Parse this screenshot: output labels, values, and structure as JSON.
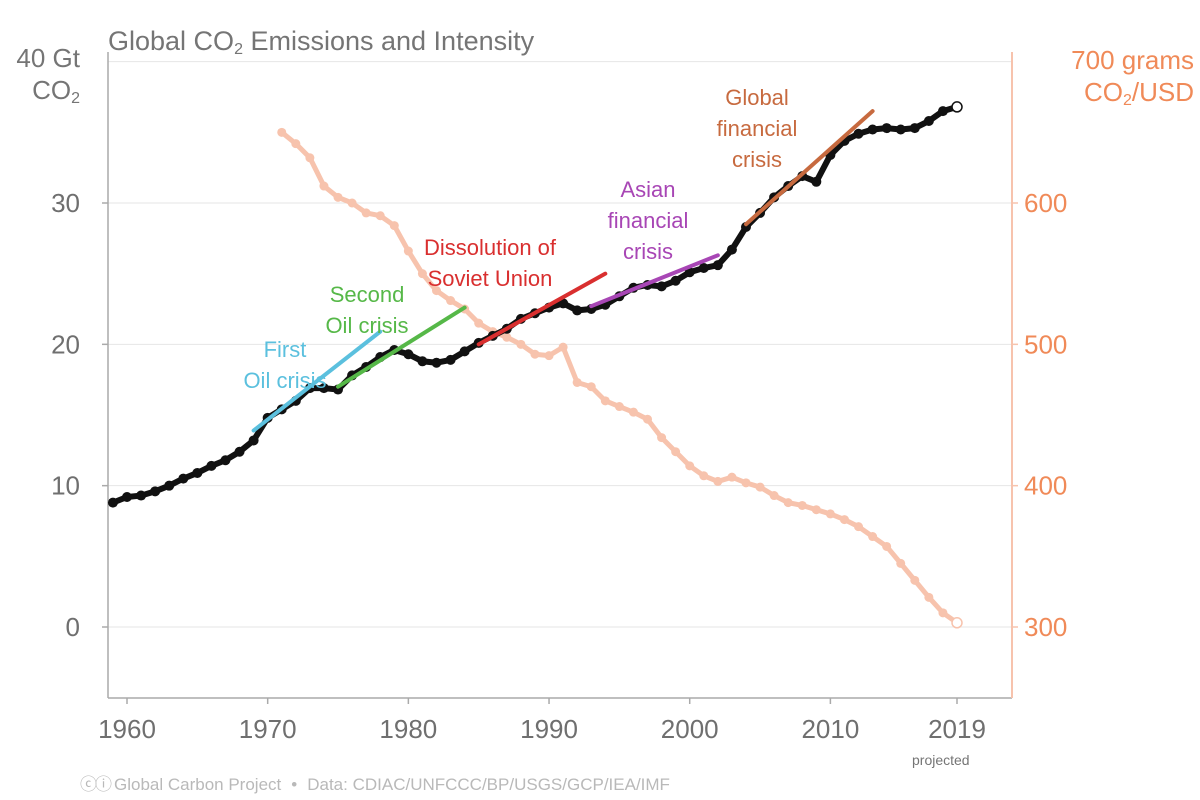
{
  "chart_data": {
    "type": "line",
    "title_prefix": "Global CO",
    "title_sub": "2",
    "title_suffix": " Emissions and Intensity",
    "y_left_label_line1": "40 Gt",
    "y_left_label_line2_prefix": "CO",
    "y_left_label_line2_sub": "2",
    "y_right_label_line1": "700 grams",
    "y_right_label_line2_prefix": "CO",
    "y_right_label_line2_sub": "2",
    "y_right_label_line2_suffix": "/USD",
    "xlim": [
      1959,
      2019
    ],
    "ylim_left": [
      -5,
      40
    ],
    "ylim_right": [
      250,
      700
    ],
    "x_ticks": [
      "1960",
      "1970",
      "1980",
      "1990",
      "2000",
      "2010",
      "2019"
    ],
    "x_tick_values": [
      1960,
      1970,
      1980,
      1990,
      2000,
      2010,
      2019
    ],
    "y_left_ticks": [
      "0",
      "10",
      "20",
      "30"
    ],
    "y_left_tick_values": [
      0,
      10,
      20,
      30
    ],
    "y_right_ticks": [
      "300",
      "400",
      "500",
      "600"
    ],
    "y_right_tick_values": [
      300,
      400,
      500,
      600
    ],
    "projected_note": "projected",
    "grid": true,
    "series": [
      {
        "axis": "left",
        "color": "#111111",
        "x": [
          1959,
          1960,
          1961,
          1962,
          1963,
          1964,
          1965,
          1966,
          1967,
          1968,
          1969,
          1970,
          1971,
          1972,
          1973,
          1974,
          1975,
          1976,
          1977,
          1978,
          1979,
          1980,
          1981,
          1982,
          1983,
          1984,
          1985,
          1986,
          1987,
          1988,
          1989,
          1990,
          1991,
          1992,
          1993,
          1994,
          1995,
          1996,
          1997,
          1998,
          1999,
          2000,
          2001,
          2002,
          2003,
          2004,
          2005,
          2006,
          2007,
          2008,
          2009,
          2010,
          2011,
          2012,
          2013,
          2014,
          2015,
          2016,
          2017,
          2018,
          2019
        ],
        "values": [
          8.8,
          9.2,
          9.3,
          9.6,
          10.0,
          10.5,
          10.9,
          11.4,
          11.8,
          12.4,
          13.2,
          14.8,
          15.4,
          16.0,
          16.9,
          16.9,
          16.8,
          17.8,
          18.4,
          19.1,
          19.6,
          19.3,
          18.8,
          18.7,
          18.9,
          19.5,
          20.1,
          20.6,
          21.1,
          21.8,
          22.2,
          22.6,
          22.9,
          22.4,
          22.5,
          22.8,
          23.4,
          24.0,
          24.2,
          24.1,
          24.5,
          25.1,
          25.4,
          25.6,
          26.7,
          28.3,
          29.3,
          30.4,
          31.2,
          31.9,
          31.5,
          33.4,
          34.4,
          34.9,
          35.2,
          35.3,
          35.2,
          35.3,
          35.8,
          36.5,
          36.8
        ]
      },
      {
        "axis": "right",
        "color": "#f7c3ad",
        "x": [
          1971,
          1972,
          1973,
          1974,
          1975,
          1976,
          1977,
          1978,
          1979,
          1980,
          1981,
          1982,
          1983,
          1984,
          1985,
          1986,
          1987,
          1988,
          1989,
          1990,
          1991,
          1992,
          1993,
          1994,
          1995,
          1996,
          1997,
          1998,
          1999,
          2000,
          2001,
          2002,
          2003,
          2004,
          2005,
          2006,
          2007,
          2008,
          2009,
          2010,
          2011,
          2012,
          2013,
          2014,
          2015,
          2016,
          2017,
          2018,
          2019
        ],
        "values": [
          650,
          642,
          632,
          612,
          604,
          600,
          593,
          591,
          584,
          566,
          550,
          538,
          531,
          525,
          515,
          509,
          505,
          500,
          493,
          492,
          498,
          473,
          470,
          460,
          456,
          452,
          447,
          434,
          424,
          414,
          407,
          403,
          406,
          402,
          399,
          393,
          388,
          386,
          383,
          380,
          376,
          371,
          364,
          357,
          345,
          333,
          321,
          310,
          303
        ]
      }
    ]
  },
  "annotations": [
    {
      "label_line1": "First",
      "label_line2": "Oil crisis",
      "color": "#5bc0de",
      "from": [
        1969,
        13.9
      ],
      "to": [
        1978,
        20.9
      ]
    },
    {
      "label_line1": "Second",
      "label_line2": "Oil crisis",
      "color": "#56b848",
      "from": [
        1975,
        17.0
      ],
      "to": [
        1984,
        22.6
      ]
    },
    {
      "label_line1": "Dissolution of",
      "label_line2": "Soviet Union",
      "color": "#d92f2f",
      "from": [
        1985,
        20.0
      ],
      "to": [
        1994,
        25.0
      ]
    },
    {
      "label_line1": "Asian",
      "label_line2": "financial",
      "label_line3": "crisis",
      "color": "#a846b5",
      "from": [
        1993,
        22.7
      ],
      "to": [
        2002,
        26.3
      ]
    },
    {
      "label_line1": "Global",
      "label_line2": "financial",
      "label_line3": "crisis",
      "color": "#c76a3f",
      "from": [
        2004,
        28.5
      ],
      "to": [
        2013,
        36.5
      ]
    }
  ],
  "footer": {
    "cc_symbols": "ⓒⓘ",
    "source": "Global Carbon Project",
    "separator": "•",
    "data_line": "Data: CDIAC/UNFCCC/BP/USGS/GCP/IEA/IMF"
  },
  "colors": {
    "left_axis": "#777777",
    "right_axis": "#f08a58",
    "grid": "#e6e6e6"
  }
}
